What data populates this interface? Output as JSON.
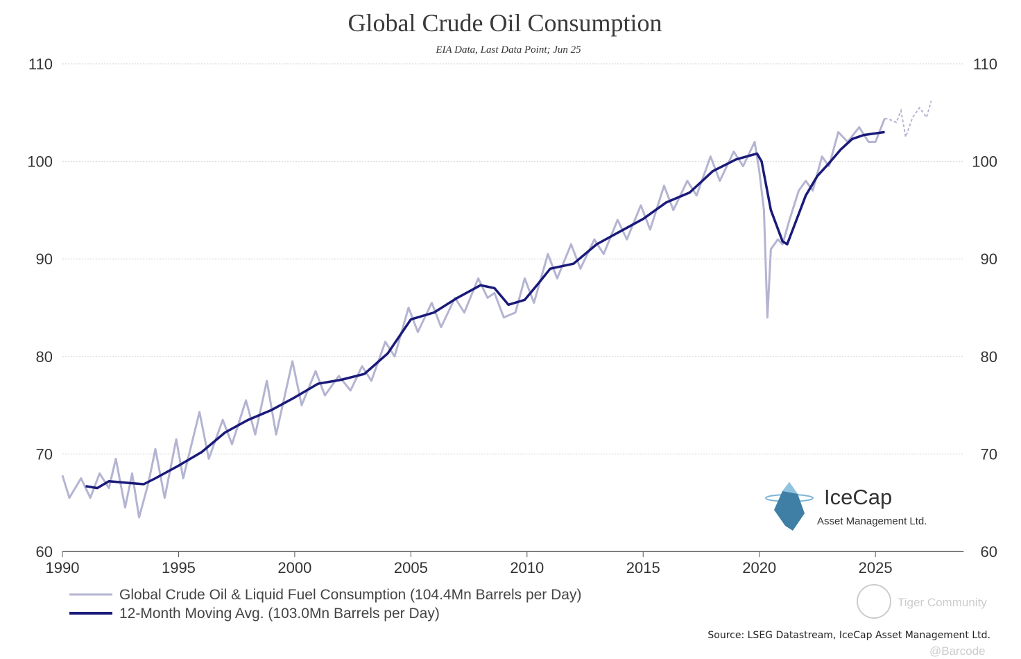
{
  "chart_data": {
    "type": "line",
    "title": "Global Crude Oil Consumption",
    "subtitle": "EIA Data, Last Data Point; Jun 25",
    "xlabel": "",
    "ylabel": "",
    "xlim": [
      1990,
      2028.8
    ],
    "ylim": [
      60,
      110
    ],
    "x_ticks": [
      "1990",
      "1995",
      "2000",
      "2005",
      "2010",
      "2015",
      "2020",
      "2025"
    ],
    "y_ticks": [
      "60",
      "70",
      "80",
      "90",
      "100",
      "110"
    ],
    "grid": "horizontal",
    "legend_position": "bottom-left",
    "series": [
      {
        "name": "Global Crude Oil & Liquid Fuel Consumption (104.4Mn Barrels per Day)",
        "color": "#b4b4d2",
        "x": [
          1990.0,
          1990.3,
          1990.8,
          1991.2,
          1991.6,
          1992.0,
          1992.3,
          1992.7,
          1993.0,
          1993.3,
          1993.7,
          1994.0,
          1994.4,
          1994.9,
          1995.2,
          1995.9,
          1996.3,
          1996.9,
          1997.3,
          1997.9,
          1998.3,
          1998.8,
          1999.2,
          1999.9,
          2000.3,
          2000.9,
          2001.3,
          2001.9,
          2002.4,
          2002.9,
          2003.3,
          2003.9,
          2004.3,
          2004.9,
          2005.3,
          2005.9,
          2006.3,
          2006.9,
          2007.3,
          2007.9,
          2008.3,
          2008.6,
          2009.0,
          2009.5,
          2009.9,
          2010.3,
          2010.9,
          2011.3,
          2011.9,
          2012.3,
          2012.9,
          2013.3,
          2013.9,
          2014.3,
          2014.9,
          2015.3,
          2015.9,
          2016.3,
          2016.9,
          2017.3,
          2017.9,
          2018.3,
          2018.9,
          2019.3,
          2019.8,
          2020.0,
          2020.2,
          2020.35,
          2020.5,
          2020.8,
          2021.0,
          2021.3,
          2021.7,
          2022.0,
          2022.3,
          2022.7,
          2023.0,
          2023.4,
          2023.8,
          2024.3,
          2024.7,
          2025.0,
          2025.4
        ],
        "y": [
          67.8,
          65.5,
          67.5,
          65.5,
          68,
          66.5,
          69.5,
          64.5,
          68,
          63.5,
          67,
          70.5,
          65.5,
          71.5,
          67.5,
          74.3,
          69.5,
          73.5,
          71,
          75.5,
          72,
          77.5,
          72,
          79.5,
          75,
          78.5,
          76,
          78,
          76.5,
          79,
          77.5,
          81.5,
          80,
          85,
          82.5,
          85.5,
          83,
          86,
          84.5,
          88,
          86,
          86.5,
          84,
          84.5,
          88,
          85.5,
          90.5,
          88,
          91.5,
          89,
          92,
          90.5,
          94,
          92,
          95.5,
          93,
          97.5,
          95,
          98,
          96.5,
          100.5,
          98,
          101,
          99.5,
          102,
          99,
          95,
          84,
          91,
          92,
          91.5,
          94,
          97,
          98,
          97,
          100.5,
          99.5,
          103,
          102,
          103.5,
          102,
          102,
          104.4
        ],
        "forecast_x": [
          2025.4,
          2025.6,
          2025.9,
          2026.1,
          2026.3,
          2026.6,
          2026.9,
          2027.2,
          2027.4
        ],
        "forecast_y": [
          104.4,
          104.3,
          104,
          105.2,
          102.5,
          104.5,
          105.5,
          104.5,
          106.2
        ]
      },
      {
        "name": "12-Month Moving Avg. (103.0Mn Barrels per Day)",
        "color": "#1a1a7a",
        "x": [
          1991,
          1991.5,
          1992,
          1993,
          1993.5,
          1994,
          1995,
          1996,
          1997,
          1998,
          1999,
          2000,
          2001,
          2002,
          2003,
          2004,
          2005,
          2006,
          2007,
          2008,
          2008.6,
          2009.2,
          2009.9,
          2010.5,
          2011,
          2012,
          2013,
          2014,
          2015,
          2016,
          2017,
          2018,
          2019,
          2019.9,
          2020.1,
          2020.5,
          2021.0,
          2021.2,
          2021.6,
          2022,
          2022.5,
          2023,
          2023.5,
          2024,
          2024.5,
          2025.4
        ],
        "y": [
          66.7,
          66.5,
          67.2,
          67,
          66.9,
          67.5,
          68.8,
          70.2,
          72.2,
          73.5,
          74.5,
          75.8,
          77.2,
          77.6,
          78.2,
          80.3,
          83.8,
          84.5,
          86,
          87.3,
          87,
          85.3,
          85.8,
          87.5,
          89,
          89.5,
          91.5,
          92.8,
          94.1,
          95.8,
          96.8,
          99,
          100.2,
          100.8,
          100,
          95,
          91.8,
          91.5,
          94,
          96.5,
          98.5,
          99.8,
          101.2,
          102.3,
          102.7,
          103.0
        ]
      }
    ],
    "source": "Source: LSEG Datastream, IceCap Asset Management Ltd.",
    "logo": {
      "name": "IceCap",
      "tagline": "Asset Management Ltd."
    },
    "watermark": [
      "Tiger Community",
      "@Barcode"
    ]
  }
}
